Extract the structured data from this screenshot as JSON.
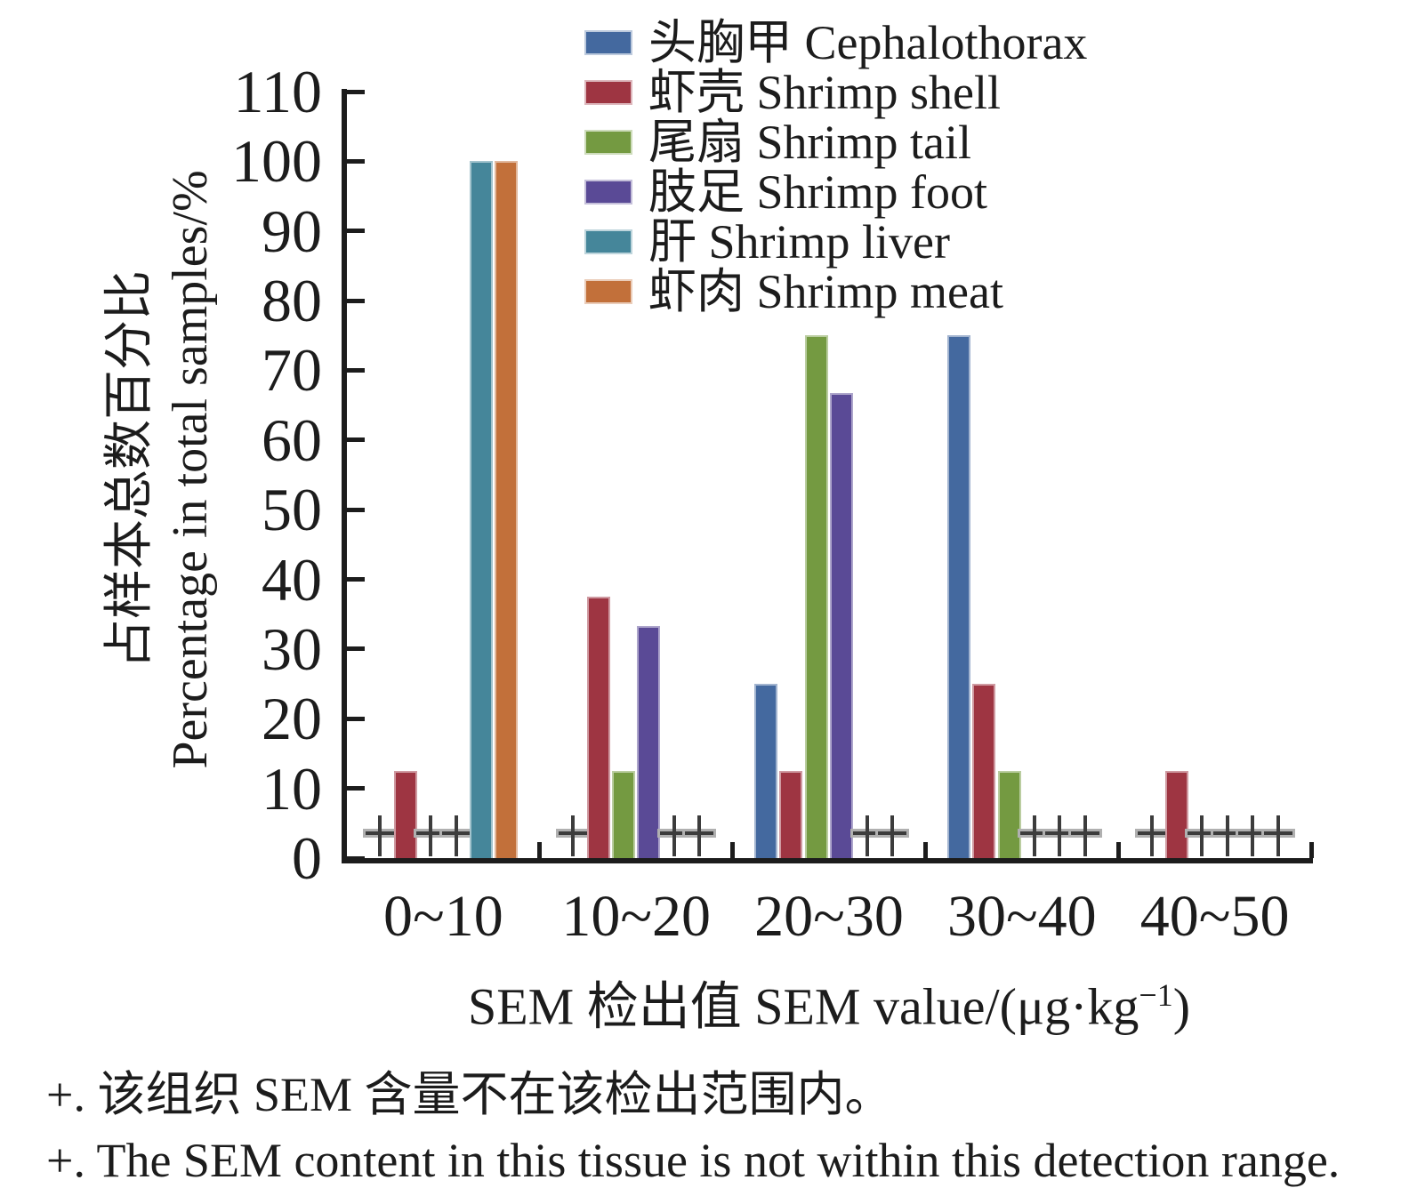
{
  "chart_data": {
    "type": "bar",
    "categories": [
      "0~10",
      "10~20",
      "20~30",
      "30~40",
      "40~50"
    ],
    "series": [
      {
        "label": "头胸甲 Cephalothorax",
        "color": "#44699F",
        "values": [
          null,
          null,
          25,
          75,
          null
        ]
      },
      {
        "label": "虾壳 Shrimp shell",
        "color": "#9E3542",
        "values": [
          12.5,
          37.5,
          12.5,
          25,
          12.5
        ]
      },
      {
        "label": "尾扇 Shrimp tail",
        "color": "#749A41",
        "values": [
          null,
          12.5,
          75,
          12.5,
          null
        ]
      },
      {
        "label": "肢足 Shrimp foot",
        "color": "#5A4A96",
        "values": [
          null,
          33.3,
          66.7,
          null,
          null
        ]
      },
      {
        "label": "肝 Shrimp liver",
        "color": "#45869A",
        "values": [
          100,
          null,
          null,
          null,
          null
        ]
      },
      {
        "label": "虾肉 Shrimp meat",
        "color": "#C2703A",
        "values": [
          100,
          null,
          null,
          null,
          null
        ]
      }
    ],
    "null_marker": "+",
    "ylabel_zh": "占样本总数百分比",
    "ylabel_en": "Percentage in total samples/%",
    "xlabel": "SEM 检出值  SEM value/(μg·kg⁻¹)",
    "xlabel_parts": {
      "main": "SEM 检出值  SEM value/(μg·kg",
      "sup": "−1",
      "end": ")"
    },
    "ylim": [
      0,
      110
    ],
    "ytick_step": 10,
    "grid": false,
    "legend_position": "top-center",
    "marker_color_dark": "#3C3C3C",
    "marker_color_light": "#B0B0B0",
    "axis_color": "#1C1C1C"
  },
  "figure": {
    "footnote_zh": "+. 该组织 SEM 含量不在该检出范围内。",
    "footnote_en": "+. The SEM content in this tissue is not within this detection range."
  }
}
